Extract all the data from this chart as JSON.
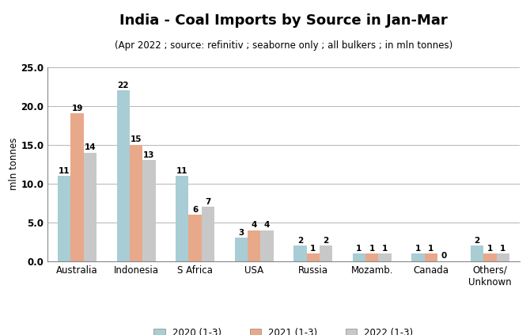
{
  "title": "India - Coal Imports by Source in Jan-Mar",
  "subtitle": "(Apr 2022 ; source: refinitiv ; seaborne only ; all bulkers ; in mln tonnes)",
  "categories": [
    "Australia",
    "Indonesia",
    "S Africa",
    "USA",
    "Russia",
    "Mozamb.",
    "Canada",
    "Others/\nUnknown"
  ],
  "series": {
    "2020 (1-3)": [
      11,
      22,
      11,
      3,
      2,
      1,
      1,
      2
    ],
    "2021 (1-3)": [
      19,
      15,
      6,
      4,
      1,
      1,
      1,
      1
    ],
    "2022 (1-3)": [
      14,
      13,
      7,
      4,
      2,
      1,
      0,
      1
    ]
  },
  "colors": {
    "2020 (1-3)": "#a8cdd4",
    "2021 (1-3)": "#e8a98a",
    "2022 (1-3)": "#c8c8c8"
  },
  "ylabel": "mln tonnes",
  "ylim": [
    0,
    25.0
  ],
  "yticks": [
    0.0,
    5.0,
    10.0,
    15.0,
    20.0,
    25.0
  ],
  "bar_width": 0.22,
  "title_fontsize": 13,
  "subtitle_fontsize": 8.5,
  "tick_fontsize": 8.5,
  "label_fontsize": 7.5,
  "ylabel_fontsize": 8.5,
  "background_color": "#ffffff",
  "grid_color": "#aaaaaa"
}
